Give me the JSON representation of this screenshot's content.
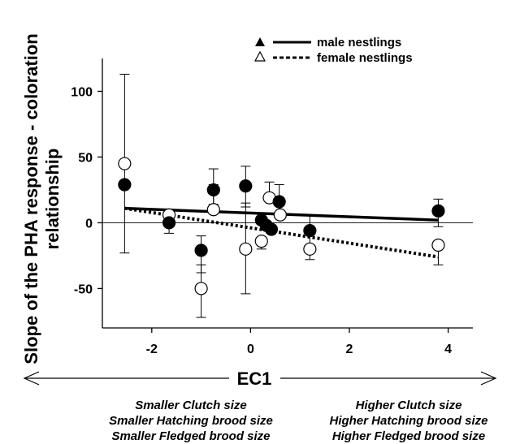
{
  "chart_data": {
    "type": "scatter",
    "title": "",
    "xlabel": "EC1",
    "ylabel_lines": [
      "Slope of the PHA response - coloration",
      "relationship"
    ],
    "xlim": [
      -3,
      4.5
    ],
    "ylim": [
      -80,
      125
    ],
    "xticks": [
      -2,
      0,
      2,
      4
    ],
    "xtick_labels": [
      "-2",
      "0",
      "2",
      "4"
    ],
    "yticks": [
      -50,
      0,
      50,
      100
    ],
    "ytick_labels": [
      "-50",
      "0",
      "50",
      "100"
    ],
    "reference_line_y": 0,
    "grid": false,
    "legend_position": "top-center",
    "legend": [
      {
        "label": "male nestlings",
        "marker": "filled-triangle",
        "line": "solid"
      },
      {
        "label": "female nestlings",
        "marker": "open-triangle",
        "line": "dotted"
      }
    ],
    "series": [
      {
        "name": "male nestlings",
        "marker": "filled-circle",
        "color": "#000000",
        "points": [
          {
            "x": -2.55,
            "y": 29,
            "err_low": null,
            "err_high": null
          },
          {
            "x": -1.65,
            "y": 0,
            "err_low": -8,
            "err_high": null
          },
          {
            "x": -1.0,
            "y": -21,
            "err_low": -38,
            "err_high": -10
          },
          {
            "x": -0.75,
            "y": 25,
            "err_low": 14,
            "err_high": 41
          },
          {
            "x": -0.1,
            "y": 28,
            "err_low": 12,
            "err_high": 43
          },
          {
            "x": 0.22,
            "y": 2,
            "err_low": null,
            "err_high": null
          },
          {
            "x": 0.32,
            "y": -2,
            "err_low": null,
            "err_high": null
          },
          {
            "x": 0.42,
            "y": -5,
            "err_low": null,
            "err_high": null
          },
          {
            "x": 0.58,
            "y": 16,
            "err_low": 6,
            "err_high": 29
          },
          {
            "x": 1.2,
            "y": -6,
            "err_low": -19,
            "err_high": 6
          },
          {
            "x": 3.8,
            "y": 9,
            "err_low": -3,
            "err_high": 18
          }
        ],
        "trend": {
          "x": [
            -2.55,
            3.8
          ],
          "y": [
            11,
            2
          ]
        }
      },
      {
        "name": "female nestlings",
        "marker": "open-circle",
        "color": "#000000",
        "points": [
          {
            "x": -2.55,
            "y": 45,
            "err_low": -23,
            "err_high": 113
          },
          {
            "x": -1.65,
            "y": 6,
            "err_low": null,
            "err_high": null
          },
          {
            "x": -1.0,
            "y": -50,
            "err_low": -72,
            "err_high": -32
          },
          {
            "x": -0.75,
            "y": 10,
            "err_low": null,
            "err_high": 29
          },
          {
            "x": -0.1,
            "y": -20,
            "err_low": -54,
            "err_high": 15
          },
          {
            "x": 0.22,
            "y": -14,
            "err_low": -20,
            "err_high": null
          },
          {
            "x": 0.38,
            "y": 19,
            "err_low": null,
            "err_high": 31
          },
          {
            "x": 0.6,
            "y": 6,
            "err_low": null,
            "err_high": null
          },
          {
            "x": 1.2,
            "y": -20,
            "err_low": -28,
            "err_high": null
          },
          {
            "x": 3.8,
            "y": -17,
            "err_low": -32,
            "err_high": null
          }
        ],
        "trend": {
          "x": [
            -2.55,
            3.8
          ],
          "y": [
            11,
            -26
          ]
        }
      }
    ]
  },
  "annotations": {
    "left_lines": [
      "Smaller Clutch size",
      "Smaller Hatching brood size",
      "Smaller Fledged brood size"
    ],
    "right_lines": [
      "Higher Clutch size",
      "Higher Hatching brood size",
      "Higher Fledged brood size"
    ]
  }
}
